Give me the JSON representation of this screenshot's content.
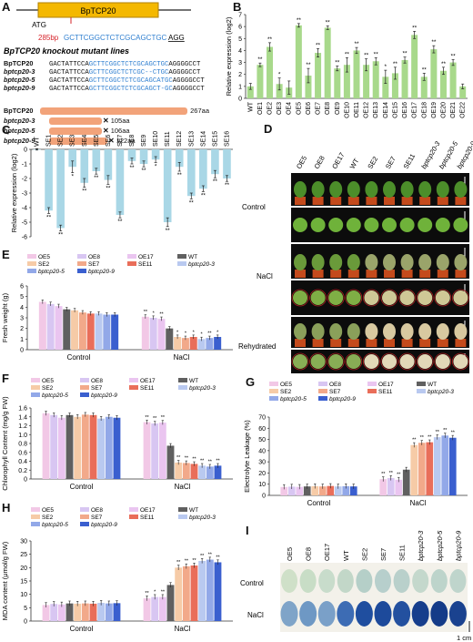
{
  "panel_labels": {
    "a": "A",
    "b": "B",
    "c": "C",
    "d": "D",
    "e": "E",
    "f": "F",
    "g": "G",
    "h": "H",
    "i": "I"
  },
  "panel_a": {
    "gene_box": "BpTCP20",
    "atg": "ATG",
    "bp_label": "285bp",
    "target_seq": "GCTTCGGCTCTCGCAGCTGC",
    "target_pam": "AGG",
    "title": "BpTCP20 knockout mutant lines",
    "sequences": [
      {
        "name": "BpTCP20",
        "pre": "GACTATTCCA",
        "mid": "GCTTCGGCTCTCGCAGCTGC",
        "post": "AGGGGCCT"
      },
      {
        "name": "bptcp20-3",
        "pre": "GACTATTCCA",
        "mid": "GCTTCGGCTCTCGC--CTGC",
        "post": "AGGGGCCT"
      },
      {
        "name": "bptcp20-5",
        "pre": "GACTATTCCA",
        "mid": "GCTTCGGCTCTCGCAGCATGC",
        "post": "AGGGGCCT"
      },
      {
        "name": "bptcp20-9",
        "pre": "GACTATTCCA",
        "mid": "GCTTCGGCTCTCGCAGCT-GC",
        "post": "AGGGGCCT"
      }
    ],
    "proteins": [
      {
        "name": "BpTCP20",
        "len": "267aa"
      },
      {
        "name": "bptcp20-3",
        "len": "105aa"
      },
      {
        "name": "bptcp20-5",
        "len": "106aa"
      },
      {
        "name": "bptcp20-9",
        "len": "122aa"
      }
    ]
  },
  "panel_d": {
    "col_labels": [
      "OE5",
      "OE8",
      "OE17",
      "WT",
      "SE2",
      "SE7",
      "SE11",
      "bptcp20-3",
      "bptcp20-5",
      "bptcp20-9"
    ],
    "row_labels": [
      "Control",
      "NaCl",
      "Rehydrated"
    ]
  },
  "panel_i": {
    "col_labels": [
      "OE5",
      "OE8",
      "OE17",
      "WT",
      "SE2",
      "SE7",
      "SE11",
      "bptcp20-3",
      "bptcp20-5",
      "bptcp20-9"
    ],
    "row_labels": [
      "Control",
      "NaCl"
    ],
    "scale": "1 cm"
  },
  "legend_common": [
    "OE5",
    "OE8",
    "OE17",
    "WT",
    "SE2",
    "SE7",
    "SE11",
    "bptcp20-3",
    "bptcp20-5",
    "bptcp20-9"
  ],
  "colors": {
    "oe_bar": "#a8d98b",
    "se_bar": "#a9d7e6",
    "sg_bar": "#6c4a24",
    "line_colors": [
      "#f2c8e6",
      "#d8c6f2",
      "#eac5f0",
      "#606060",
      "#f6cba7",
      "#f2a98a",
      "#e96e5a",
      "#b9c9f0",
      "#92a8e8",
      "#3a5fcf"
    ],
    "red": "#d6232a",
    "blue": "#2f7fd0"
  },
  "chart_data": [
    {
      "type": "bar",
      "ylabel": "Relative expression (log2)",
      "ylim": [
        0,
        7
      ],
      "yticks": [
        "0",
        "1",
        "2",
        "3",
        "4",
        "5",
        "6",
        "7"
      ],
      "categories": [
        "WT",
        "OE1",
        "OE2",
        "OE3",
        "OE4",
        "OE5",
        "OE6",
        "OE7",
        "OE8",
        "OE9",
        "OE10",
        "OE11",
        "OE12",
        "OE13",
        "OE14",
        "OE15",
        "OE16",
        "OE17",
        "OE18",
        "OE19",
        "OE20",
        "OE21",
        "OE22"
      ],
      "values": [
        1.0,
        2.8,
        4.3,
        1.2,
        0.9,
        6.1,
        1.9,
        3.8,
        5.9,
        2.5,
        2.8,
        4.0,
        2.8,
        3.1,
        1.8,
        2.1,
        3.2,
        5.3,
        1.8,
        4.1,
        2.3,
        3.0,
        1.0
      ],
      "errors": [
        0.25,
        0.15,
        0.35,
        0.5,
        0.55,
        0.15,
        0.6,
        0.35,
        0.15,
        0.2,
        0.6,
        0.25,
        0.5,
        0.3,
        0.55,
        0.5,
        0.25,
        0.3,
        0.3,
        0.3,
        0.3,
        0.25,
        0.2
      ],
      "marks": [
        "",
        "**",
        "**",
        "*",
        "",
        "**",
        "**",
        "**",
        "**",
        "**",
        "**",
        "**",
        "**",
        "**",
        "*",
        "**",
        "**",
        "**",
        "**",
        "**",
        "**",
        "**",
        ""
      ]
    },
    {
      "type": "bar",
      "ylabel": "Relative expression (log2)",
      "ylim": [
        -6,
        0
      ],
      "yticks": [
        "0",
        "-1",
        "-2",
        "-3",
        "-4",
        "-5",
        "-6"
      ],
      "categories": [
        "WT",
        "SE1",
        "SE2",
        "SE3",
        "SE4",
        "SE5",
        "SE6",
        "SE7",
        "SE8",
        "SE9",
        "SE10",
        "SE11",
        "SE12",
        "SE13",
        "SE14",
        "SE15",
        "SE16"
      ],
      "values": [
        0,
        -4.2,
        -5.4,
        -1.2,
        -2.3,
        -1.5,
        -2.1,
        -4.5,
        -0.8,
        -1.0,
        -0.7,
        -5.0,
        -1.2,
        -3.2,
        -2.7,
        -1.7,
        -2.0
      ],
      "errors": [
        0.05,
        0.2,
        0.2,
        0.4,
        0.3,
        0.2,
        0.3,
        0.2,
        0.2,
        0.2,
        0.2,
        0.3,
        0.3,
        0.2,
        0.2,
        0.25,
        0.2
      ],
      "marks": [
        "",
        "**",
        "**",
        "*",
        "**",
        "**",
        "**",
        "**",
        "**",
        "**",
        "*",
        "**",
        "**",
        "**",
        "**",
        "**",
        "**"
      ]
    },
    {
      "type": "bar",
      "ylabel": "Fresh weight (g)",
      "ylim": [
        0,
        6
      ],
      "yticks": [
        "0",
        "1",
        "2",
        "3",
        "4",
        "5",
        "6"
      ],
      "groups": [
        "Control",
        "NaCl"
      ],
      "series": [
        {
          "name": "OE5",
          "values": [
            4.5,
            3.1
          ]
        },
        {
          "name": "OE8",
          "values": [
            4.3,
            3.0
          ]
        },
        {
          "name": "OE17",
          "values": [
            4.1,
            2.9
          ]
        },
        {
          "name": "WT",
          "values": [
            3.8,
            2.0
          ]
        },
        {
          "name": "SE2",
          "values": [
            3.7,
            1.2
          ]
        },
        {
          "name": "SE7",
          "values": [
            3.5,
            1.1
          ]
        },
        {
          "name": "SE11",
          "values": [
            3.4,
            1.2
          ]
        },
        {
          "name": "bptcp20-3",
          "values": [
            3.4,
            1.0
          ]
        },
        {
          "name": "bptcp20-5",
          "values": [
            3.3,
            1.1
          ]
        },
        {
          "name": "bptcp20-9",
          "values": [
            3.3,
            1.2
          ]
        }
      ],
      "marks": [
        [
          "",
          ""
        ],
        [
          "",
          ""
        ],
        [
          "",
          ""
        ],
        [
          "",
          ""
        ],
        [
          "",
          ""
        ],
        [
          "",
          ""
        ],
        [
          "",
          ""
        ],
        [
          "",
          ""
        ],
        [
          "",
          ""
        ],
        [
          "",
          ""
        ]
      ],
      "nacl_marks": [
        "**",
        "*",
        "**",
        "",
        "*",
        "*",
        "*",
        "*",
        "**",
        "*"
      ],
      "errors": [
        0.45,
        0.4
      ]
    },
    {
      "type": "bar",
      "ylabel": "Chlorophyll Content (mg/g FW)",
      "ylim": [
        0,
        1.6
      ],
      "yticks": [
        "0",
        "0.2",
        "0.4",
        "0.6",
        "0.8",
        "1.0",
        "1.2",
        "1.4",
        "1.6"
      ],
      "groups": [
        "Control",
        "NaCl"
      ],
      "series": [
        {
          "name": "OE5",
          "values": [
            1.48,
            1.28
          ]
        },
        {
          "name": "OE8",
          "values": [
            1.44,
            1.25
          ]
        },
        {
          "name": "OE17",
          "values": [
            1.38,
            1.27
          ]
        },
        {
          "name": "WT",
          "values": [
            1.44,
            0.75
          ]
        },
        {
          "name": "SE2",
          "values": [
            1.4,
            0.37
          ]
        },
        {
          "name": "SE7",
          "values": [
            1.45,
            0.36
          ]
        },
        {
          "name": "SE11",
          "values": [
            1.44,
            0.34
          ]
        },
        {
          "name": "bptcp20-3",
          "values": [
            1.36,
            0.3
          ]
        },
        {
          "name": "bptcp20-5",
          "values": [
            1.4,
            0.28
          ]
        },
        {
          "name": "bptcp20-9",
          "values": [
            1.38,
            0.3
          ]
        }
      ],
      "nacl_marks": [
        "**",
        "**",
        "**",
        "",
        "**",
        "**",
        "**",
        "**",
        "**",
        "**"
      ]
    },
    {
      "type": "bar",
      "ylabel": "Electrolyte Leakage (%)",
      "ylim": [
        0,
        70
      ],
      "yticks": [
        "0",
        "10",
        "20",
        "30",
        "40",
        "50",
        "60",
        "70"
      ],
      "groups": [
        "Control",
        "NaCl"
      ],
      "series": [
        {
          "name": "OE5",
          "values": [
            7.5,
            14.5
          ]
        },
        {
          "name": "OE8",
          "values": [
            7.8,
            15.5
          ]
        },
        {
          "name": "OE17",
          "values": [
            7.6,
            14.0
          ]
        },
        {
          "name": "WT",
          "values": [
            8.0,
            23.0
          ]
        },
        {
          "name": "SE2",
          "values": [
            8.2,
            45.0
          ]
        },
        {
          "name": "SE7",
          "values": [
            8.0,
            47.0
          ]
        },
        {
          "name": "SE11",
          "values": [
            8.4,
            47.5
          ]
        },
        {
          "name": "bptcp20-3",
          "values": [
            8.0,
            52.0
          ]
        },
        {
          "name": "bptcp20-5",
          "values": [
            8.2,
            53.5
          ]
        },
        {
          "name": "bptcp20-9",
          "values": [
            8.0,
            51.5
          ]
        }
      ],
      "nacl_marks": [
        "**",
        "**",
        "**",
        "",
        "**",
        "**",
        "**",
        "**",
        "**",
        "**"
      ]
    },
    {
      "type": "bar",
      "ylabel": "MDA content (μmol/g FW)",
      "ylim": [
        0,
        30
      ],
      "yticks": [
        "0",
        "5",
        "10",
        "15",
        "20",
        "25",
        "30"
      ],
      "groups": [
        "Control",
        "NaCl"
      ],
      "series": [
        {
          "name": "OE5",
          "values": [
            6.0,
            8.5
          ]
        },
        {
          "name": "OE8",
          "values": [
            6.4,
            9.0
          ]
        },
        {
          "name": "OE17",
          "values": [
            6.2,
            9.0
          ]
        },
        {
          "name": "WT",
          "values": [
            6.6,
            13.5
          ]
        },
        {
          "name": "SE2",
          "values": [
            6.5,
            20.0
          ]
        },
        {
          "name": "SE7",
          "values": [
            6.6,
            20.5
          ]
        },
        {
          "name": "SE11",
          "values": [
            6.5,
            20.8
          ]
        },
        {
          "name": "bptcp20-3",
          "values": [
            6.8,
            22.5
          ]
        },
        {
          "name": "bptcp20-5",
          "values": [
            6.6,
            23.0
          ]
        },
        {
          "name": "bptcp20-9",
          "values": [
            6.7,
            22.0
          ]
        }
      ],
      "nacl_marks": [
        "**",
        "*",
        "**",
        "",
        "**",
        "**",
        "**",
        "**",
        "**",
        "**"
      ]
    }
  ]
}
